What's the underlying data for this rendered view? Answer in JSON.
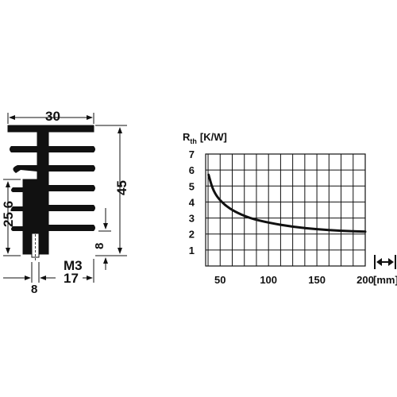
{
  "drawing": {
    "dim_width": "30",
    "dim_height": "45",
    "dim_hole_height": "25,6",
    "dim_bottom_right": "8",
    "dim_thread": "M3",
    "dim_bottom_left": "8",
    "dim_bottom_mid": "17"
  },
  "chart_data": {
    "type": "line",
    "ylabel_main": "R",
    "ylabel_sub": "th",
    "ylabel_unit": "[K/W]",
    "x_unit": "[mm]",
    "xlim": [
      35,
      200
    ],
    "ylim": [
      0,
      7
    ],
    "x_ticks": [
      50,
      100,
      150,
      200
    ],
    "y_ticks": [
      1,
      2,
      3,
      4,
      5,
      6,
      7
    ],
    "grid": true,
    "series": [
      {
        "x": [
          38,
          42,
          47,
          55,
          65,
          80,
          100,
          125,
          150,
          175,
          200
        ],
        "values": [
          5.7,
          4.85,
          4.3,
          3.8,
          3.4,
          3.0,
          2.7,
          2.45,
          2.3,
          2.2,
          2.15
        ]
      }
    ],
    "length_arrow_icon": "double-arrow-horizontal"
  }
}
